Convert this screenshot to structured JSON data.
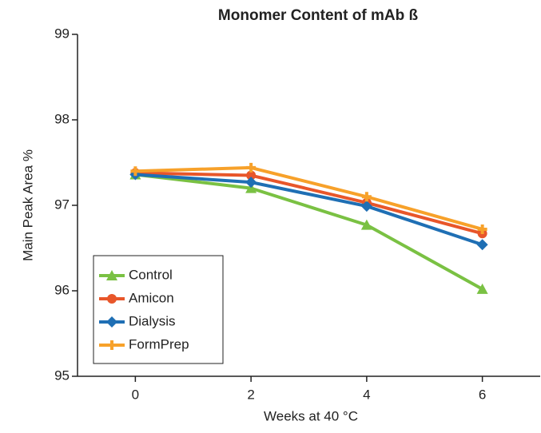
{
  "chart_data": {
    "type": "line",
    "title": "Monomer Content of mAb ß",
    "x_label": "Weeks at 40 °C",
    "y_label": "Main Peak  Area %",
    "x": [
      0,
      2,
      4,
      6
    ],
    "series": [
      {
        "name": "Control",
        "color": "#7ac143",
        "marker": "triangle",
        "values": [
          97.36,
          97.2,
          96.77,
          96.02
        ]
      },
      {
        "name": "Amicon",
        "color": "#e8562a",
        "marker": "circle",
        "values": [
          97.38,
          97.35,
          97.03,
          96.67
        ]
      },
      {
        "name": "Dialysis",
        "color": "#1f6fb4",
        "marker": "diamond",
        "values": [
          97.36,
          97.27,
          96.99,
          96.54
        ]
      },
      {
        "name": "FormPrep",
        "color": "#f7a12a",
        "marker": "plus",
        "values": [
          97.4,
          97.44,
          97.1,
          96.72
        ]
      }
    ],
    "xlim": [
      -1,
      7
    ],
    "xticks": [
      0,
      2,
      4,
      6
    ],
    "ylim": [
      95,
      99
    ],
    "yticks": [
      95,
      96,
      97,
      98,
      99
    ],
    "legend": "lower left",
    "grid": false
  }
}
